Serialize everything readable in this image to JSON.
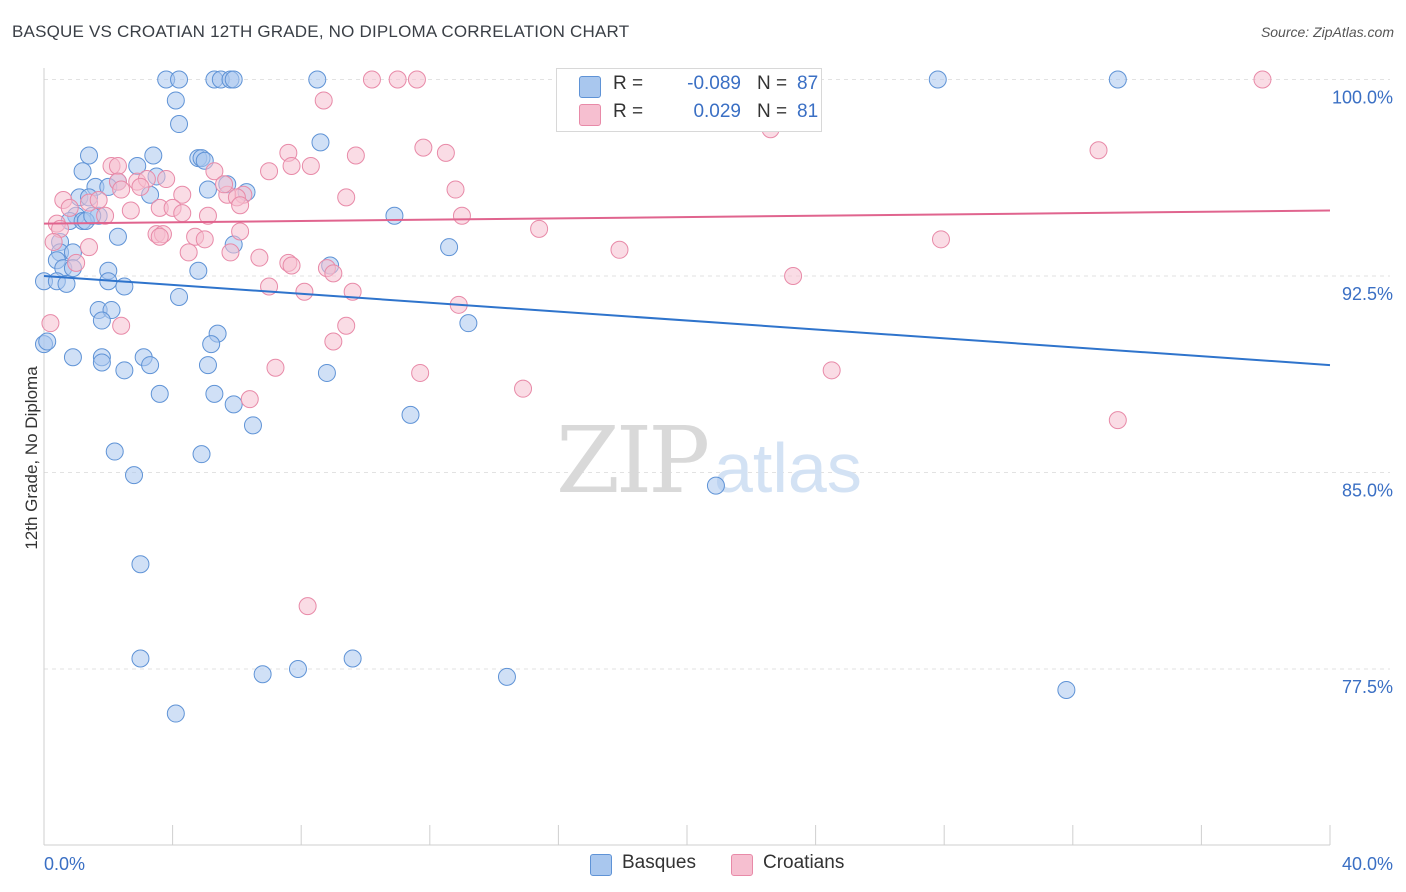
{
  "title": "BASQUE VS CROATIAN 12TH GRADE, NO DIPLOMA CORRELATION CHART",
  "source": "Source: ZipAtlas.com",
  "watermark": {
    "zip": "ZIP",
    "atlas": "atlas"
  },
  "legend": {
    "rows": [
      {
        "r_label": "R =",
        "r_value": "-0.089",
        "n_label": "N =",
        "n_value": "87"
      },
      {
        "r_label": "R =",
        "r_value": "0.029",
        "n_label": "N =",
        "n_value": "81"
      }
    ]
  },
  "bottom_legend": [
    "Basques",
    "Croatians"
  ],
  "colors": {
    "basques_fill": "#a9c7ee",
    "basques_stroke": "#5f93d6",
    "basques_line": "#2f74cc",
    "croatians_fill": "#f6bfd0",
    "croatians_stroke": "#e88aa8",
    "croatians_line": "#e0648e",
    "tick_label": "#3a6fc4",
    "grid": "#e2e2e2"
  },
  "chart_data": {
    "type": "scatter",
    "title": "BASQUE VS CROATIAN 12TH GRADE, NO DIPLOMA CORRELATION CHART",
    "xlabel": "",
    "ylabel": "12th Grade, No Diploma",
    "xlim": [
      0.0,
      40.0
    ],
    "ylim": [
      70.0,
      101.0
    ],
    "x_ticks": [
      "0.0%",
      "40.0%"
    ],
    "y_ticks": [
      {
        "value": 100.0,
        "label": "100.0%"
      },
      {
        "value": 92.5,
        "label": "92.5%"
      },
      {
        "value": 85.0,
        "label": "85.0%"
      },
      {
        "value": 77.5,
        "label": "77.5%"
      }
    ],
    "grid": "horizontal dashed",
    "legend_position": "top-center",
    "series": [
      {
        "name": "Basques",
        "trend": {
          "x": [
            0.0,
            40.0
          ],
          "y": [
            92.5,
            89.1
          ]
        },
        "points": [
          [
            3.8,
            100.0
          ],
          [
            4.2,
            100.0
          ],
          [
            5.3,
            100.0
          ],
          [
            5.5,
            100.0
          ],
          [
            5.8,
            100.0
          ],
          [
            5.9,
            100.0
          ],
          [
            8.5,
            100.0
          ],
          [
            27.8,
            100.0
          ],
          [
            33.4,
            100.0
          ],
          [
            4.1,
            99.2
          ],
          [
            4.2,
            98.3
          ],
          [
            8.6,
            97.6
          ],
          [
            1.4,
            97.1
          ],
          [
            3.4,
            97.1
          ],
          [
            4.8,
            97.0
          ],
          [
            4.9,
            97.0
          ],
          [
            5.0,
            96.9
          ],
          [
            2.9,
            96.7
          ],
          [
            1.2,
            96.5
          ],
          [
            3.5,
            96.3
          ],
          [
            2.3,
            96.1
          ],
          [
            5.7,
            96.0
          ],
          [
            1.6,
            95.9
          ],
          [
            2.0,
            95.9
          ],
          [
            5.1,
            95.8
          ],
          [
            6.3,
            95.7
          ],
          [
            3.3,
            95.6
          ],
          [
            1.1,
            95.5
          ],
          [
            1.4,
            95.5
          ],
          [
            1.0,
            94.8
          ],
          [
            1.7,
            94.8
          ],
          [
            0.8,
            94.6
          ],
          [
            1.2,
            94.6
          ],
          [
            1.3,
            94.6
          ],
          [
            10.9,
            94.8
          ],
          [
            2.3,
            94.0
          ],
          [
            0.5,
            93.8
          ],
          [
            5.9,
            93.7
          ],
          [
            12.6,
            93.6
          ],
          [
            0.5,
            93.4
          ],
          [
            0.9,
            93.4
          ],
          [
            0.4,
            93.1
          ],
          [
            0.6,
            92.8
          ],
          [
            0.9,
            92.8
          ],
          [
            8.9,
            92.9
          ],
          [
            2.0,
            92.7
          ],
          [
            4.8,
            92.7
          ],
          [
            0.0,
            92.3
          ],
          [
            0.4,
            92.3
          ],
          [
            0.7,
            92.2
          ],
          [
            2.0,
            92.3
          ],
          [
            2.5,
            92.1
          ],
          [
            4.2,
            91.7
          ],
          [
            1.7,
            91.2
          ],
          [
            2.1,
            91.2
          ],
          [
            1.8,
            90.8
          ],
          [
            13.2,
            90.7
          ],
          [
            5.4,
            90.3
          ],
          [
            5.2,
            89.9
          ],
          [
            0.0,
            89.9
          ],
          [
            0.9,
            89.4
          ],
          [
            1.8,
            89.4
          ],
          [
            1.8,
            89.2
          ],
          [
            3.1,
            89.4
          ],
          [
            3.3,
            89.1
          ],
          [
            5.1,
            89.1
          ],
          [
            2.5,
            88.9
          ],
          [
            8.8,
            88.8
          ],
          [
            3.6,
            88.0
          ],
          [
            5.3,
            88.0
          ],
          [
            5.9,
            87.6
          ],
          [
            11.4,
            87.2
          ],
          [
            6.5,
            86.8
          ],
          [
            2.2,
            85.8
          ],
          [
            4.9,
            85.7
          ],
          [
            2.8,
            84.9
          ],
          [
            20.9,
            84.5
          ],
          [
            3.0,
            81.5
          ],
          [
            3.0,
            77.9
          ],
          [
            9.6,
            77.9
          ],
          [
            6.8,
            77.3
          ],
          [
            7.9,
            77.5
          ],
          [
            14.4,
            77.2
          ],
          [
            4.1,
            75.8
          ],
          [
            31.8,
            76.7
          ],
          [
            0.1,
            90.0
          ],
          [
            1.5,
            94.8
          ]
        ]
      },
      {
        "name": "Croatians",
        "trend": {
          "x": [
            0.0,
            40.0
          ],
          "y": [
            94.5,
            95.0
          ]
        },
        "points": [
          [
            10.2,
            100.0
          ],
          [
            11.0,
            100.0
          ],
          [
            11.6,
            100.0
          ],
          [
            22.7,
            100.0
          ],
          [
            37.9,
            100.0
          ],
          [
            8.7,
            99.2
          ],
          [
            17.2,
            99.3
          ],
          [
            22.6,
            98.1
          ],
          [
            11.8,
            97.4
          ],
          [
            12.5,
            97.2
          ],
          [
            32.8,
            97.3
          ],
          [
            9.7,
            97.1
          ],
          [
            7.6,
            97.2
          ],
          [
            7.7,
            96.7
          ],
          [
            8.3,
            96.7
          ],
          [
            2.1,
            96.7
          ],
          [
            2.3,
            96.7
          ],
          [
            7.0,
            96.5
          ],
          [
            5.3,
            96.5
          ],
          [
            2.3,
            96.1
          ],
          [
            2.9,
            96.1
          ],
          [
            3.2,
            96.2
          ],
          [
            3.8,
            96.2
          ],
          [
            12.8,
            95.8
          ],
          [
            2.4,
            95.8
          ],
          [
            4.3,
            95.6
          ],
          [
            6.2,
            95.6
          ],
          [
            5.7,
            95.6
          ],
          [
            6.0,
            95.5
          ],
          [
            9.4,
            95.5
          ],
          [
            0.6,
            95.4
          ],
          [
            0.8,
            95.1
          ],
          [
            1.4,
            95.3
          ],
          [
            1.7,
            95.4
          ],
          [
            3.6,
            95.1
          ],
          [
            4.0,
            95.1
          ],
          [
            2.7,
            95.0
          ],
          [
            6.1,
            95.2
          ],
          [
            13.0,
            94.8
          ],
          [
            5.1,
            94.8
          ],
          [
            1.9,
            94.8
          ],
          [
            0.4,
            94.5
          ],
          [
            15.4,
            94.3
          ],
          [
            6.1,
            94.2
          ],
          [
            3.5,
            94.1
          ],
          [
            3.7,
            94.1
          ],
          [
            4.7,
            94.0
          ],
          [
            5.0,
            93.9
          ],
          [
            27.9,
            93.9
          ],
          [
            1.4,
            93.6
          ],
          [
            17.9,
            93.5
          ],
          [
            4.5,
            93.4
          ],
          [
            5.8,
            93.4
          ],
          [
            6.7,
            93.2
          ],
          [
            7.6,
            93.0
          ],
          [
            8.8,
            92.8
          ],
          [
            9.0,
            92.6
          ],
          [
            23.3,
            92.5
          ],
          [
            7.0,
            92.1
          ],
          [
            8.1,
            91.9
          ],
          [
            9.6,
            91.9
          ],
          [
            12.9,
            91.4
          ],
          [
            9.4,
            90.6
          ],
          [
            2.4,
            90.6
          ],
          [
            9.0,
            90.0
          ],
          [
            7.2,
            89.0
          ],
          [
            24.5,
            88.9
          ],
          [
            11.7,
            88.8
          ],
          [
            14.9,
            88.2
          ],
          [
            6.4,
            87.8
          ],
          [
            33.4,
            87.0
          ],
          [
            8.2,
            79.9
          ],
          [
            0.2,
            90.7
          ],
          [
            1.0,
            93.0
          ],
          [
            3.0,
            95.9
          ],
          [
            0.5,
            94.3
          ],
          [
            4.3,
            94.9
          ],
          [
            7.7,
            92.9
          ],
          [
            0.3,
            93.8
          ],
          [
            3.6,
            94.0
          ],
          [
            5.6,
            96.0
          ]
        ]
      }
    ]
  }
}
